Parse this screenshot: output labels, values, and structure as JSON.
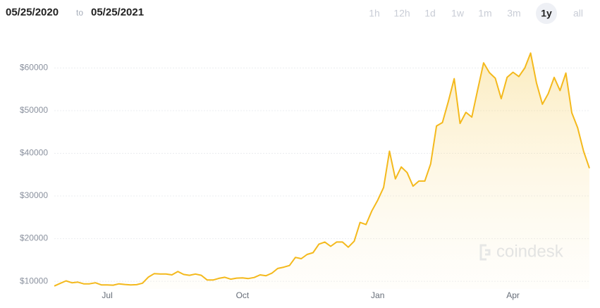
{
  "header": {
    "start": "05/25/2020",
    "separator": "to",
    "end": "05/25/2021"
  },
  "range_buttons": {
    "options": [
      "1h",
      "12h",
      "1d",
      "1w",
      "1m",
      "3m",
      "1y",
      "all"
    ],
    "selected": "1y"
  },
  "watermark": "coindesk",
  "chart_data": {
    "type": "area",
    "color": "#f4b91c",
    "grid": true,
    "ylim": [
      8200,
      68500
    ],
    "yticks": [
      {
        "value": 10000,
        "label": "$10000"
      },
      {
        "value": 20000,
        "label": "$20000"
      },
      {
        "value": 30000,
        "label": "$30000"
      },
      {
        "value": 40000,
        "label": "$40000"
      },
      {
        "value": 50000,
        "label": "$50000"
      },
      {
        "value": 60000,
        "label": "$60000"
      }
    ],
    "categories": [
      null,
      null,
      null,
      null,
      null,
      null,
      null,
      null,
      null,
      "Jul",
      null,
      null,
      null,
      null,
      null,
      null,
      null,
      null,
      null,
      null,
      null,
      null,
      null,
      null,
      null,
      null,
      null,
      null,
      null,
      null,
      null,
      null,
      "Oct",
      null,
      null,
      null,
      null,
      null,
      null,
      null,
      null,
      null,
      null,
      null,
      null,
      null,
      null,
      null,
      null,
      null,
      null,
      null,
      null,
      null,
      null,
      "Jan",
      null,
      null,
      null,
      null,
      null,
      null,
      null,
      null,
      null,
      null,
      null,
      null,
      null,
      null,
      null,
      null,
      null,
      null,
      null,
      null,
      null,
      null,
      "Apr",
      null,
      null,
      null,
      null,
      null,
      null,
      null,
      null,
      null,
      null,
      null,
      null,
      null
    ],
    "values": [
      8900,
      9500,
      10100,
      9650,
      9800,
      9400,
      9400,
      9650,
      9150,
      9150,
      9100,
      9400,
      9250,
      9150,
      9200,
      9550,
      11000,
      11800,
      11700,
      11700,
      11500,
      12300,
      11600,
      11400,
      11700,
      11400,
      10300,
      10300,
      10700,
      10950,
      10500,
      10750,
      10800,
      10650,
      10900,
      11500,
      11300,
      11900,
      13000,
      13300,
      13700,
      15600,
      15300,
      16300,
      16700,
      18700,
      19200,
      18200,
      19200,
      19200,
      18000,
      19400,
      23800,
      23300,
      26500,
      29000,
      32000,
      40500,
      34000,
      36800,
      35500,
      32300,
      33500,
      33500,
      37500,
      46400,
      47200,
      52100,
      57500,
      47000,
      49600,
      48500,
      54900,
      61200,
      58900,
      57600,
      52800,
      57800,
      59000,
      58000,
      60000,
      63500,
      56500,
      51500,
      54000,
      57800,
      54700,
      58800,
      49500,
      46000,
      40500,
      36500
    ]
  }
}
